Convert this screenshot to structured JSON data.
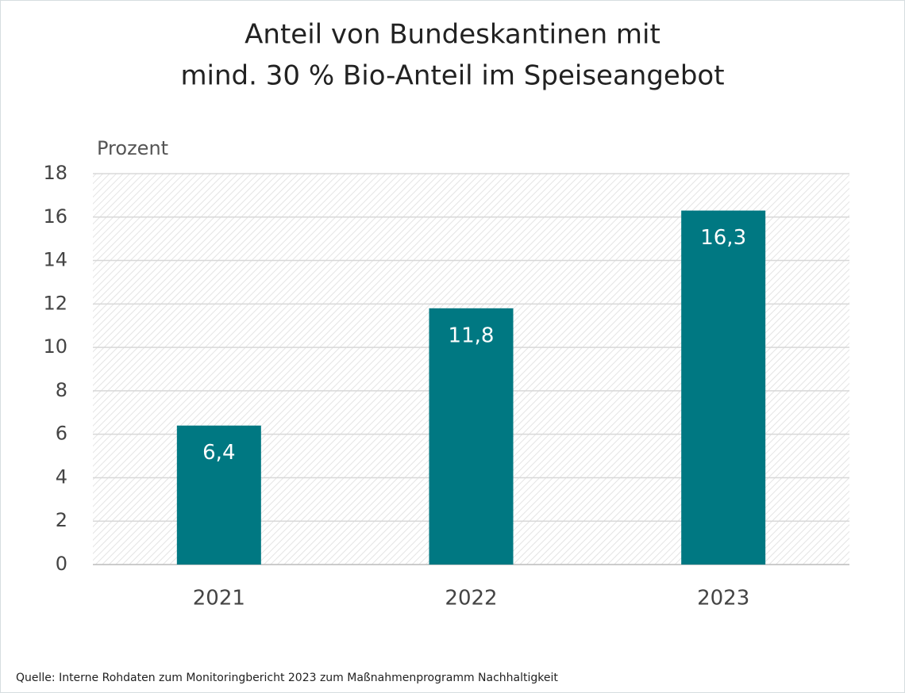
{
  "chart_data": {
    "type": "bar",
    "title": [
      "Anteil von Bundeskantinen mit",
      "mind. 30 % Bio-Anteil im Speiseangebot"
    ],
    "y_label": "Prozent",
    "categories": [
      "2021",
      "2022",
      "2023"
    ],
    "values": [
      6.4,
      11.8,
      16.3
    ],
    "value_labels": [
      "6,4",
      "11,8",
      "16,3"
    ],
    "color": "#007882",
    "ylim": [
      0,
      18
    ],
    "yticks": [
      0,
      2,
      4,
      6,
      8,
      10,
      12,
      14,
      16,
      18
    ],
    "grid": true,
    "source": "Quelle: Interne Rohdaten zum Monitoringbericht 2023 zum Maßnahmenprogramm Nachhaltigkeit"
  }
}
